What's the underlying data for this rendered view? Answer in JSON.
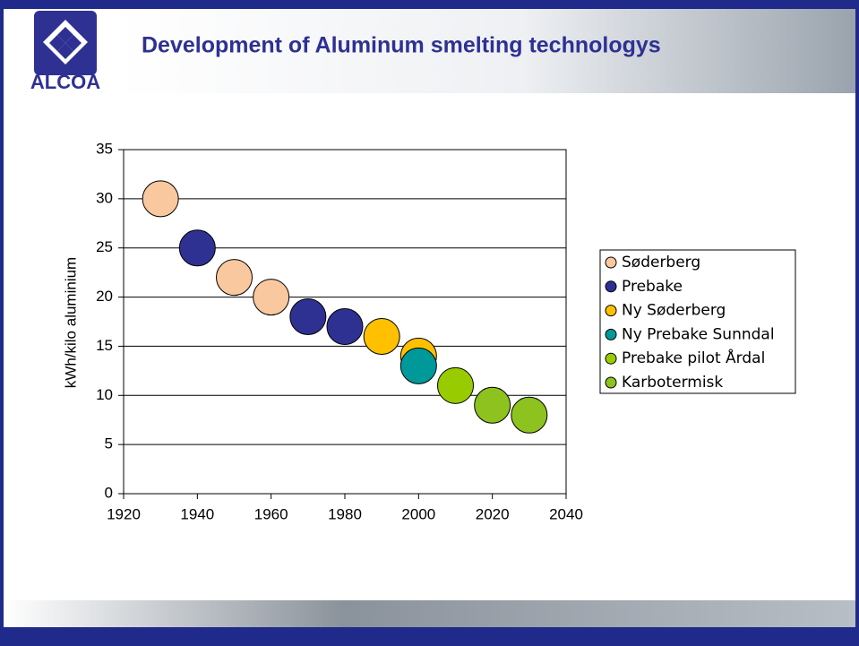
{
  "header": {
    "title": "Development of Aluminum smelting technologys",
    "logo": "ALCOA"
  },
  "chart_data": {
    "type": "scatter",
    "y_label": "kWh/kilo aluminium",
    "xlim": [
      1920,
      2040
    ],
    "xticks": [
      1920,
      1940,
      1960,
      1980,
      2000,
      2020,
      2040
    ],
    "ylim": [
      0,
      35
    ],
    "yticks": [
      0,
      5,
      10,
      15,
      20,
      25,
      30,
      35
    ],
    "grid": true,
    "legend": "right",
    "series": [
      {
        "name": "Søderberg",
        "color": "#f9c89e",
        "x": [
          1930,
          1950,
          1960
        ],
        "values": [
          30,
          22,
          20
        ]
      },
      {
        "name": "Prebake",
        "color": "#2e3192",
        "x": [
          1940,
          1970,
          1980
        ],
        "values": [
          25,
          18,
          17
        ]
      },
      {
        "name": "Ny Søderberg",
        "color": "#ffc000",
        "x": [
          1990,
          2000
        ],
        "values": [
          16,
          14
        ]
      },
      {
        "name": "Ny Prebake Sunndal",
        "color": "#009999",
        "x": [
          2000
        ],
        "values": [
          13
        ]
      },
      {
        "name": "Prebake pilot Årdal",
        "color": "#99cc00",
        "x": [
          2010
        ],
        "values": [
          11
        ]
      },
      {
        "name": "Karbotermisk",
        "color": "#8dc21f",
        "x": [
          2020,
          2030
        ],
        "values": [
          9,
          8
        ]
      }
    ]
  }
}
